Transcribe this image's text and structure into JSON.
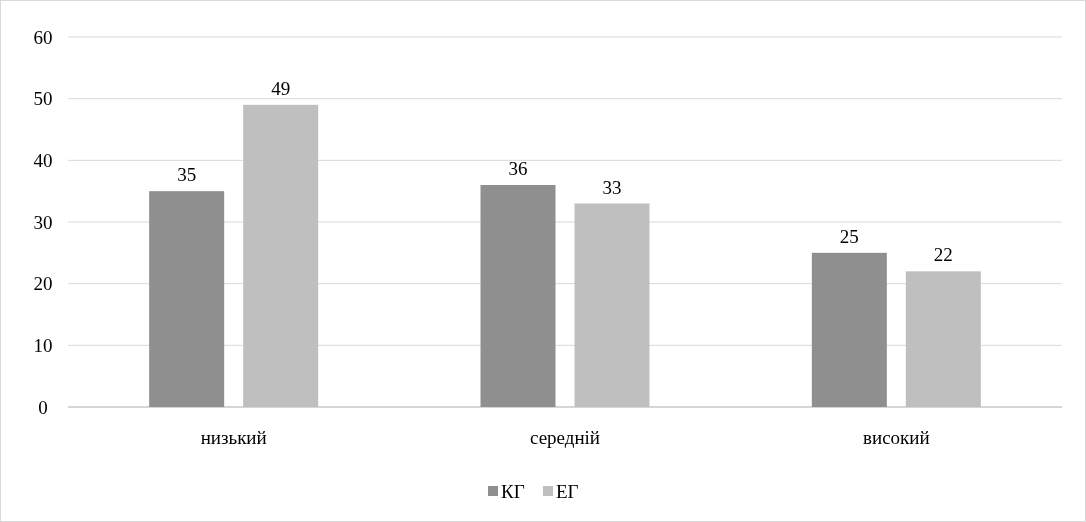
{
  "chart_data": {
    "type": "bar",
    "categories": [
      "низький",
      "середній",
      "високий"
    ],
    "series": [
      {
        "name": "КГ",
        "color": "#8f8f8f",
        "values": [
          35,
          36,
          25
        ]
      },
      {
        "name": "ЕГ",
        "color": "#bfbfbf",
        "values": [
          49,
          33,
          22
        ]
      }
    ],
    "ylim": [
      0,
      60
    ],
    "yticks": [
      0,
      10,
      20,
      30,
      40,
      50,
      60
    ],
    "grid": "y",
    "legend": "bottom",
    "data_labels": true
  }
}
